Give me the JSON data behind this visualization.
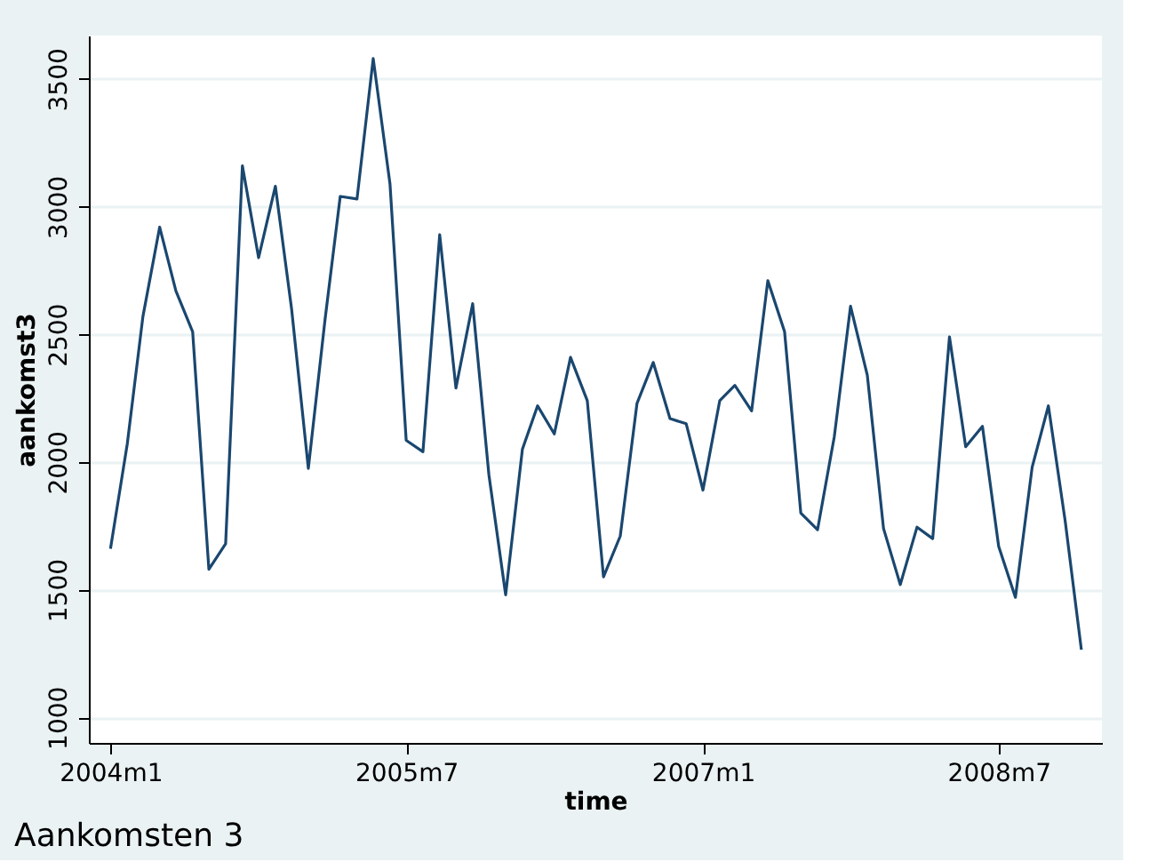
{
  "chart_data": {
    "type": "line",
    "title": "Aankomsten 3",
    "xlabel": "time",
    "ylabel": "aankomst3",
    "x": [
      "2004-01",
      "2004-02",
      "2004-03",
      "2004-04",
      "2004-05",
      "2004-06",
      "2004-07",
      "2004-08",
      "2004-09",
      "2004-10",
      "2004-11",
      "2004-12",
      "2005-01",
      "2005-02",
      "2005-03",
      "2005-04",
      "2005-05",
      "2005-06",
      "2005-07",
      "2005-08",
      "2005-09",
      "2005-10",
      "2005-11",
      "2005-12",
      "2006-01",
      "2006-02",
      "2006-03",
      "2006-04",
      "2006-05",
      "2006-06",
      "2006-07",
      "2006-08",
      "2006-09",
      "2006-10",
      "2006-11",
      "2006-12",
      "2007-01",
      "2007-02",
      "2007-03",
      "2007-04",
      "2007-05",
      "2007-06",
      "2007-07",
      "2007-08",
      "2007-09",
      "2007-10",
      "2007-11",
      "2007-12",
      "2008-01",
      "2008-02",
      "2008-03",
      "2008-04",
      "2008-05",
      "2008-06",
      "2008-07",
      "2008-08",
      "2008-09",
      "2008-10",
      "2008-11",
      "2008-12"
    ],
    "series": [
      {
        "color": "#1a476f",
        "values": [
          1660,
          2070,
          2570,
          2920,
          2670,
          2510,
          1580,
          1680,
          3160,
          2800,
          3080,
          2600,
          1975,
          2560,
          3040,
          3030,
          3580,
          3090,
          2085,
          2040,
          2890,
          2290,
          2620,
          1950,
          1480,
          2050,
          2220,
          2110,
          2410,
          2240,
          1550,
          1710,
          2230,
          2390,
          2170,
          2150,
          1890,
          2240,
          2300,
          2200,
          2710,
          2510,
          1800,
          1735,
          2100,
          2610,
          2340,
          1740,
          1520,
          1745,
          1700,
          2490,
          2060,
          2140,
          1670,
          1470,
          1980,
          2220,
          1770,
          1265
        ]
      }
    ],
    "xlim": [
      "2003-11-22",
      "2009-01-08"
    ],
    "xticks": [
      {
        "value": "2004-01",
        "label": "2004m1"
      },
      {
        "value": "2005-07",
        "label": "2005m7"
      },
      {
        "value": "2007-01",
        "label": "2007m1"
      },
      {
        "value": "2008-07",
        "label": "2008m7"
      }
    ],
    "ylim": [
      900,
      3670
    ],
    "yticks": [
      1000,
      1500,
      2000,
      2500,
      3000,
      3500
    ],
    "grid": "y",
    "line_style": "solid"
  }
}
